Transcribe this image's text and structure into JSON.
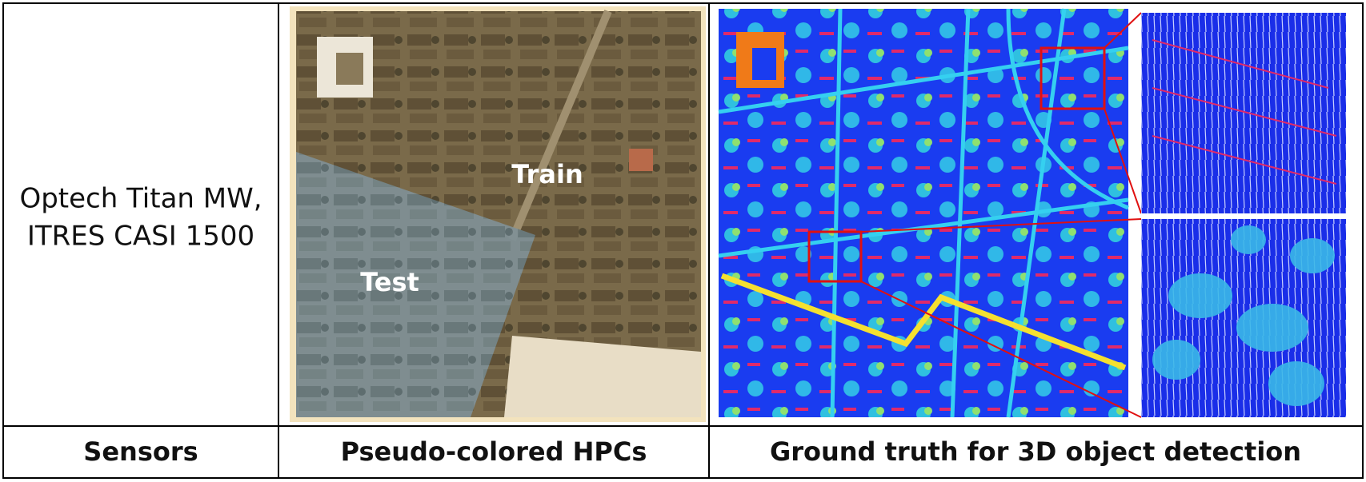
{
  "sensor_info": [
    "Optech Titan MW,",
    "ITRES CASI 1500"
  ],
  "split_labels": {
    "train": "Train",
    "test": "Test"
  },
  "footer": [
    "Sensors",
    "Pseudo-colored HPCs",
    "Ground truth for 3D object detection"
  ]
}
